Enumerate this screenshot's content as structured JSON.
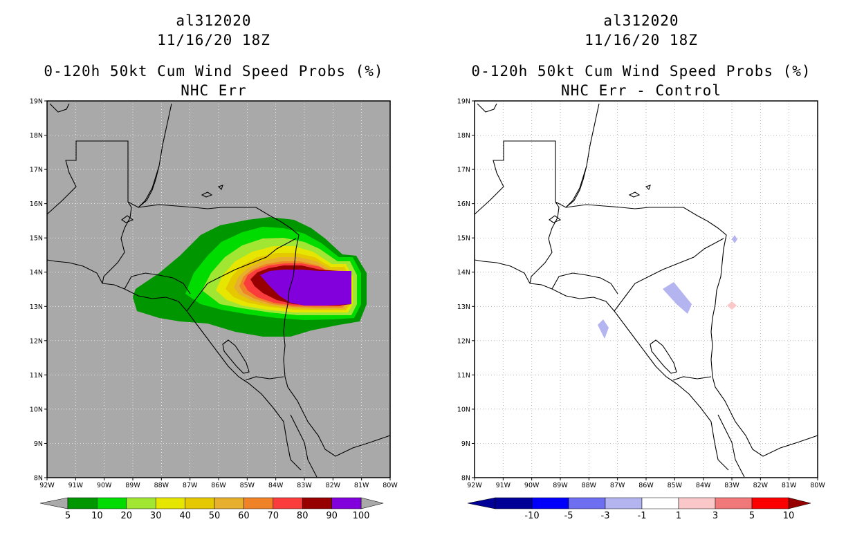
{
  "left_panel": {
    "storm_id": "al312020",
    "datetime": "11/16/20 18Z",
    "product": "0-120h 50kt Cum Wind Speed Probs (%)",
    "subtitle": "NHC Err",
    "background_color": "#a9a9a9",
    "legend": {
      "labels": [
        "5",
        "10",
        "20",
        "30",
        "40",
        "50",
        "60",
        "70",
        "80",
        "90",
        "100"
      ],
      "colors": [
        "#009600",
        "#00dc00",
        "#a0e632",
        "#e6e600",
        "#e6c800",
        "#e6af2d",
        "#f08228",
        "#fa3c3c",
        "#960000",
        "#8200dc"
      ]
    }
  },
  "right_panel": {
    "storm_id": "al312020",
    "datetime": "11/16/20 18Z",
    "product": "0-120h 50kt Cum Wind Speed Probs (%)",
    "subtitle": "NHC Err - Control",
    "background_color": "#ffffff",
    "legend": {
      "labels": [
        "-10",
        "-5",
        "-3",
        "-1",
        "1",
        "3",
        "5",
        "10"
      ],
      "colors": [
        "#000096",
        "#0000fa",
        "#6e6ef0",
        "#b4b4f0",
        "#ffffff",
        "#fac8c8",
        "#f07878",
        "#fa0000",
        "#960000"
      ]
    }
  },
  "axes": {
    "lat_labels": [
      "19N",
      "18N",
      "17N",
      "16N",
      "15N",
      "14N",
      "13N",
      "12N",
      "11N",
      "10N",
      "9N",
      "8N"
    ],
    "lon_labels": [
      "92W",
      "91W",
      "90W",
      "89W",
      "88W",
      "87W",
      "86W",
      "85W",
      "84W",
      "83W",
      "82W",
      "81W",
      "80W"
    ]
  }
}
